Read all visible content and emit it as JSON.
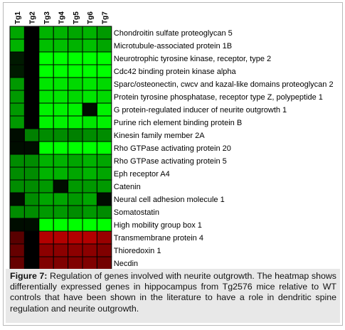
{
  "chart_data": {
    "type": "heatmap",
    "columns": [
      "Tg1",
      "Tg2",
      "Tg3",
      "Tg4",
      "Tg5",
      "Tg6",
      "Tg7"
    ],
    "rows": [
      "Chondroitin sulfate proteoglycan 5",
      "Microtubule-associated protein 1B",
      "Neurotrophic tyrosine kinase, receptor, type 2",
      "Cdc42 binding protein kinase alpha",
      "Sparc/osteonectin, cwcv and kazal-like domains proteoglycan 2",
      "Protein tyrosine phosphatase, receptor type Z, polypeptide 1",
      "G protein-regulated inducer of neurite outgrowth 1",
      "Purine rich element binding protein B",
      "Kinesin family member 2A",
      "Rho GTPase activating protein 20",
      "Rho GTPase activating protein 5",
      "Eph receptor A4",
      "Catenin",
      "Neural cell adhesion molecule 1",
      "Somatostatin",
      "High mobility group box 1",
      "Transmembrane protein 4",
      "Thioredoxin 1",
      "Necdin"
    ],
    "values": [
      [
        0.65,
        0.0,
        0.7,
        0.7,
        0.65,
        0.7,
        0.6
      ],
      [
        0.7,
        0.0,
        0.75,
        0.75,
        0.7,
        0.75,
        0.65
      ],
      [
        0.1,
        0.0,
        1.0,
        1.0,
        1.0,
        1.0,
        1.0
      ],
      [
        0.1,
        0.0,
        1.0,
        1.0,
        1.0,
        1.0,
        1.0
      ],
      [
        0.6,
        0.0,
        0.9,
        0.9,
        0.85,
        0.9,
        0.85
      ],
      [
        0.6,
        0.0,
        0.9,
        0.9,
        0.85,
        0.9,
        0.85
      ],
      [
        0.6,
        0.0,
        0.95,
        0.95,
        0.95,
        0.05,
        0.95
      ],
      [
        0.6,
        0.0,
        0.95,
        0.95,
        0.95,
        0.9,
        0.95
      ],
      [
        0.05,
        0.5,
        0.55,
        0.55,
        0.5,
        0.55,
        0.55
      ],
      [
        0.05,
        0.05,
        1.0,
        1.0,
        1.0,
        1.0,
        1.0
      ],
      [
        0.55,
        0.55,
        0.7,
        0.7,
        0.65,
        0.7,
        0.65
      ],
      [
        0.55,
        0.55,
        0.7,
        0.7,
        0.65,
        0.7,
        0.65
      ],
      [
        0.55,
        0.55,
        0.6,
        0.05,
        0.6,
        0.6,
        0.6
      ],
      [
        0.05,
        0.55,
        0.65,
        0.65,
        0.6,
        0.65,
        0.05
      ],
      [
        0.55,
        0.55,
        0.6,
        0.6,
        0.55,
        0.6,
        0.55
      ],
      [
        0.05,
        0.05,
        1.0,
        1.0,
        1.0,
        1.0,
        1.0
      ],
      [
        -0.35,
        0.0,
        -0.7,
        -0.7,
        -0.7,
        -0.7,
        -0.6
      ],
      [
        -0.4,
        0.0,
        -0.55,
        -0.55,
        -0.55,
        -0.55,
        -0.5
      ],
      [
        -0.4,
        0.0,
        -0.5,
        -0.5,
        -0.5,
        -0.5,
        -0.45
      ]
    ],
    "colors": {
      "positive": "#00ff00",
      "negative": "#ff0000",
      "neutral": "#000000",
      "grid": "#000000"
    }
  },
  "caption": {
    "label": "Figure 7:",
    "text": " Regulation of genes involved with neurite outgrowth. The heatmap shows differentially expressed genes in hippocampus from Tg2576 mice relative to WT controls that have been shown in the literature to have a role in dendritic spine regulation and neurite outgrowth."
  }
}
